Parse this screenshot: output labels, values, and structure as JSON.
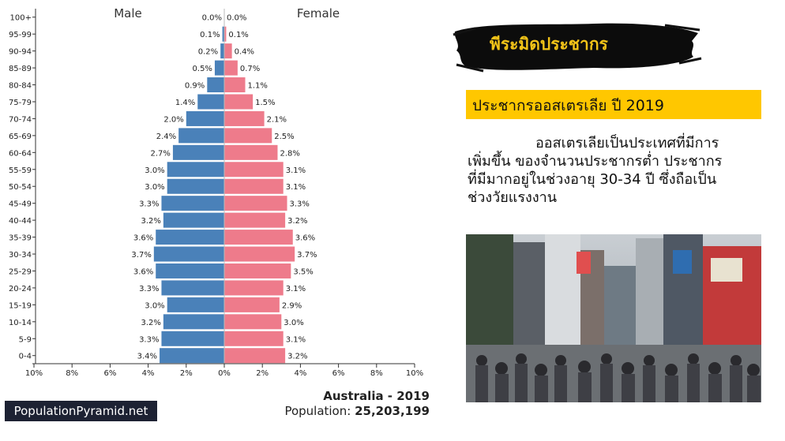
{
  "chart_data": {
    "type": "bar",
    "orientation": "horizontal-pyramid",
    "categories": [
      "100+",
      "95-99",
      "90-94",
      "85-89",
      "80-84",
      "75-79",
      "70-74",
      "65-69",
      "60-64",
      "55-59",
      "50-54",
      "45-49",
      "40-44",
      "35-39",
      "30-34",
      "25-29",
      "20-24",
      "15-19",
      "10-14",
      "5-9",
      "0-4"
    ],
    "series": [
      {
        "name": "Male",
        "values": [
          0.0,
          0.1,
          0.2,
          0.5,
          0.9,
          1.4,
          2.0,
          2.4,
          2.7,
          3.0,
          3.0,
          3.3,
          3.2,
          3.6,
          3.7,
          3.6,
          3.3,
          3.0,
          3.2,
          3.3,
          3.4
        ],
        "color": "#4a81b9"
      },
      {
        "name": "Female",
        "values": [
          0.0,
          0.1,
          0.4,
          0.7,
          1.1,
          1.5,
          2.1,
          2.5,
          2.8,
          3.1,
          3.1,
          3.3,
          3.2,
          3.6,
          3.7,
          3.5,
          3.1,
          2.9,
          3.0,
          3.1,
          3.2
        ],
        "color": "#ee7b8b"
      }
    ],
    "value_suffix": "%",
    "xlim": [
      -10,
      10
    ],
    "x_ticks": [
      -10,
      -8,
      -6,
      -4,
      -2,
      0,
      2,
      4,
      6,
      8,
      10
    ],
    "x_tick_labels": [
      "10%",
      "8%",
      "6%",
      "4%",
      "2%",
      "0%",
      "2%",
      "4%",
      "6%",
      "8%",
      "10%"
    ],
    "grid": false,
    "legend": "top"
  },
  "brand": "PopulationPyramid.net",
  "footer": {
    "country_year": "Australia - 2019",
    "population_label": "Population:",
    "population_value": "25,203,199"
  },
  "right_panel": {
    "brush_title": "พีระมิดประชากร",
    "banner": "ประชากรออสเตรเลีย ปี 2019",
    "description_lines": [
      "ออสเตรเลียเป็นประเทศที่มีการ",
      "เพิ่มขึ้น ของจำนวนประชากรต่ำ ประชากร",
      "ที่มีมากอยู่ในช่วงอายุ 30-34 ปี ซึ่งถือเป็น",
      "ช่วงวัยแรงงาน"
    ]
  },
  "colors": {
    "male": "#4a81b9",
    "female": "#ee7b8b",
    "banner": "#ffc700",
    "brush_text": "#f2c318",
    "brand_bg": "#1d2233"
  }
}
